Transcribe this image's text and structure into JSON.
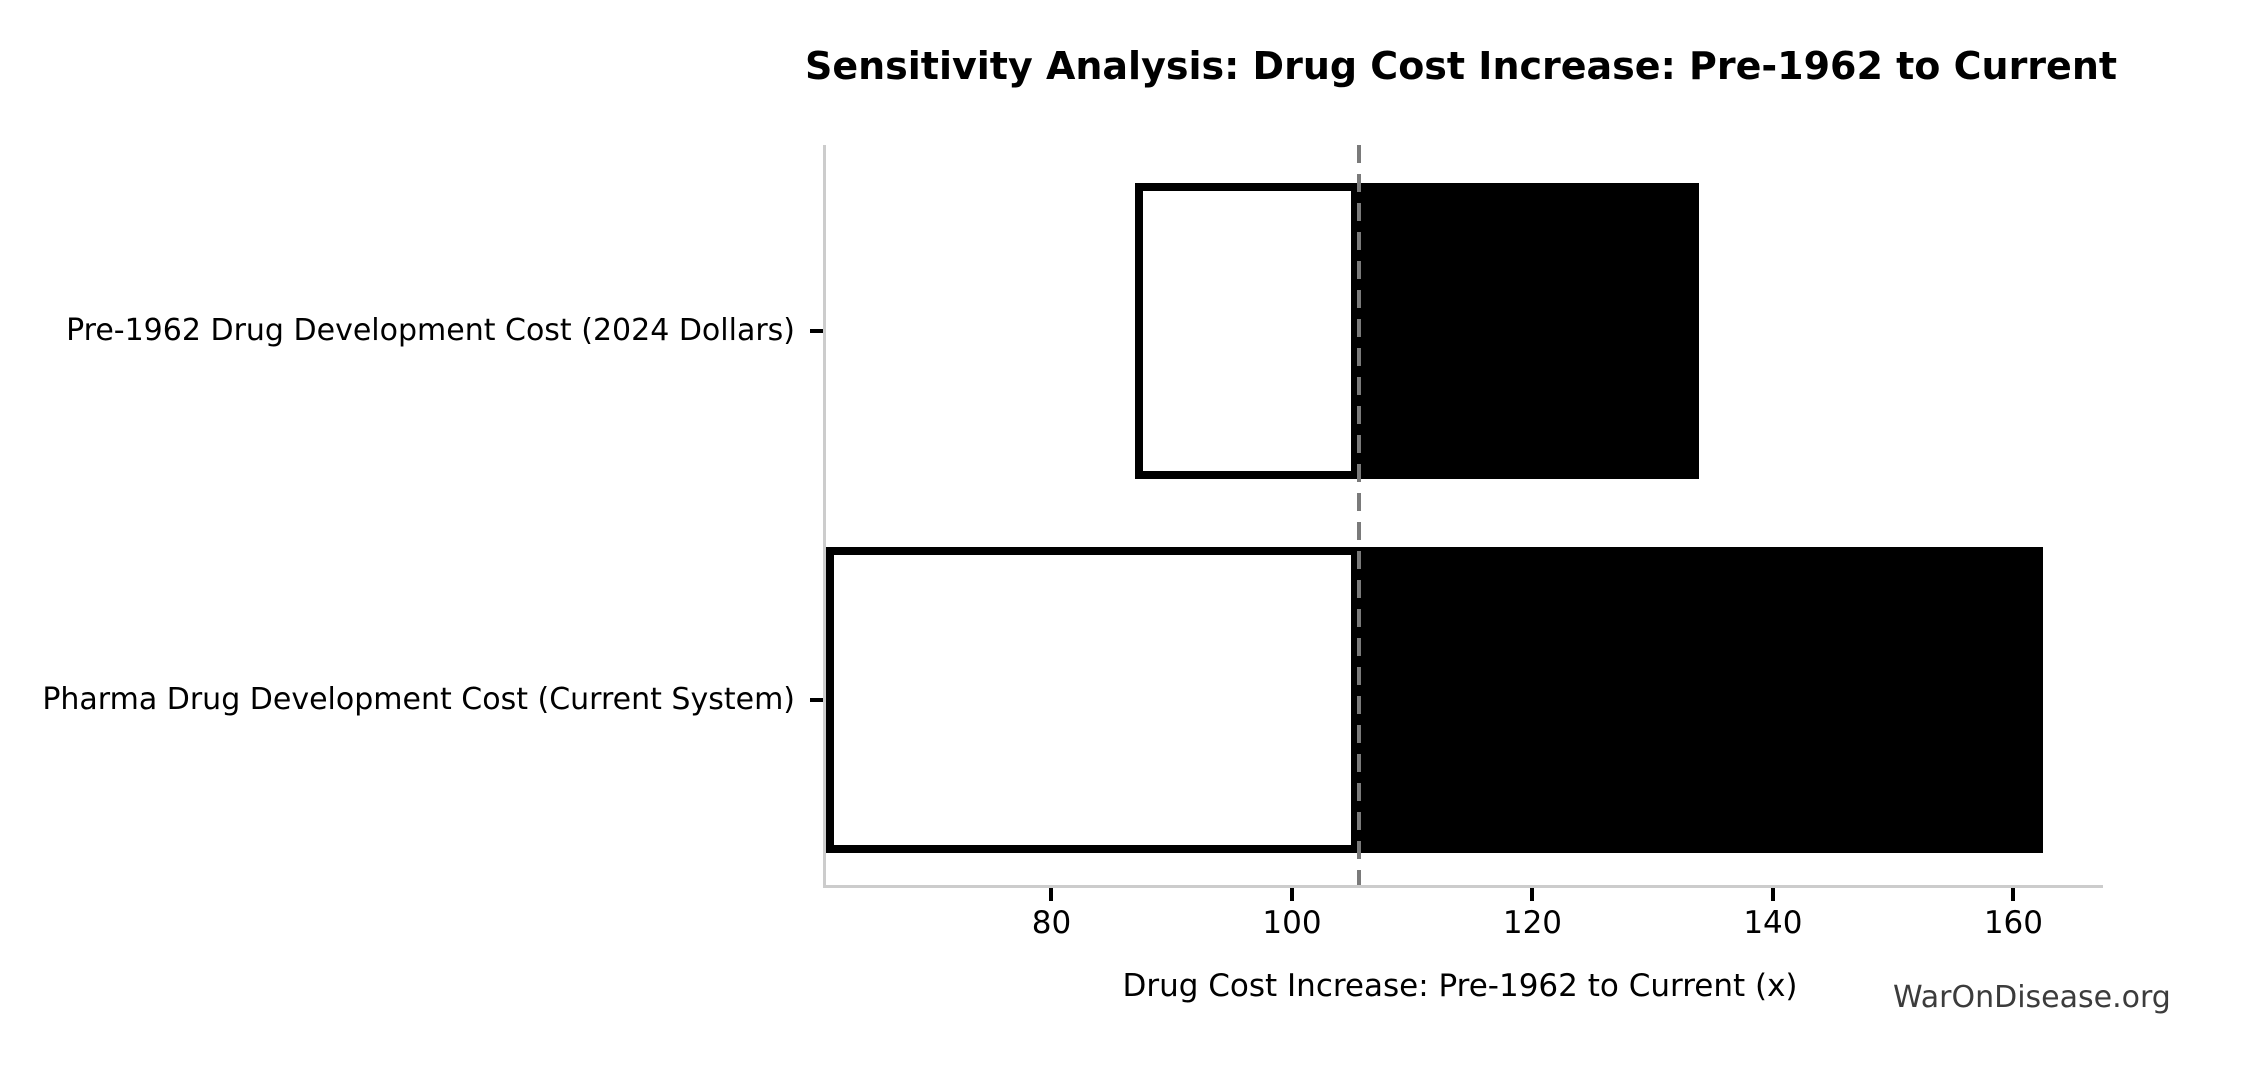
{
  "chart_data": {
    "type": "bar",
    "subtype": "tornado-sensitivity-horizontal",
    "title": "Sensitivity Analysis: Drug Cost Increase: Pre-1962 to Current",
    "xlabel": "Drug Cost Increase: Pre-1962 to Current (x)",
    "ylabel": "",
    "watermark": "WarOnDisease.org",
    "baseline": 105.3,
    "xlim": [
      61,
      167.2
    ],
    "xticks": [
      80,
      100,
      120,
      140,
      160
    ],
    "grid": false,
    "legend": false,
    "categories": [
      "Pre-1962 Drug Development Cost (2024 Dollars)",
      "Pharma Drug Development Cost (Current System)"
    ],
    "bars": [
      {
        "label": "Pre-1962 Drug Development Cost (2024 Dollars)",
        "low": 86.7,
        "high": 133.6
      },
      {
        "label": "Pharma Drug Development Cost (Current System)",
        "low": 61.0,
        "high": 162.2
      }
    ],
    "colors": {
      "low_fill": "#ffffff",
      "high_fill": "#000000",
      "edge": "#000000",
      "baseline_line": "#7a7a7a",
      "spine": "#cccccc",
      "text": "#000000",
      "watermark": "#3c3c3c"
    }
  }
}
